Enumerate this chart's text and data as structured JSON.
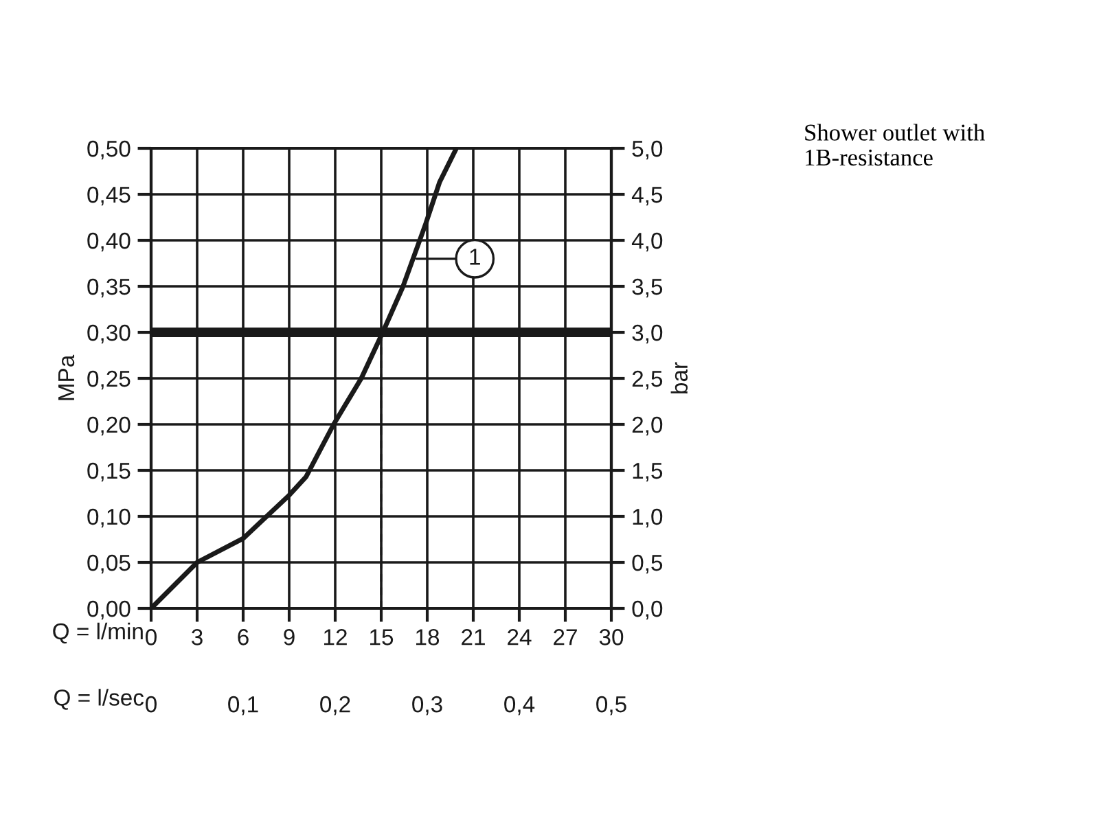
{
  "chart_data": {
    "type": "line",
    "annotations": [
      {
        "text": "1",
        "x": 17.3,
        "y": 0.38
      },
      "Shower outlet with 1B-resistance"
    ],
    "xlabel": "Q = l/min",
    "x2label": "Q = l/sec",
    "ylabel": "MPa",
    "y2label": "bar",
    "series": [
      {
        "color": "#1a1a1a",
        "line_style": "solid",
        "x": [
          0,
          3,
          6,
          9,
          10.1,
          11.9,
          13.7,
          15.1,
          16.4,
          17.9,
          18.8,
          19.9
        ],
        "values": [
          0,
          0.05,
          0.076,
          0.123,
          0.143,
          0.2,
          0.25,
          0.3,
          0.349,
          0.418,
          0.463,
          0.5
        ]
      },
      {
        "color": "#1a1a1a",
        "line_style": "dashed",
        "x": [
          15,
          15
        ],
        "values": [
          0,
          0.3
        ]
      }
    ],
    "ref_lines": [
      {
        "axis": "y",
        "value": 0.3,
        "color": "#1a1a1a"
      }
    ],
    "xlim": [
      0,
      30
    ],
    "xticks": [
      0,
      3,
      6,
      9,
      12,
      15,
      18,
      21,
      24,
      27,
      30
    ],
    "x2lim": [
      0,
      0.5
    ],
    "x2ticks": [
      0,
      {
        "value": 0.1,
        "label": "0,1"
      },
      {
        "value": 0.2,
        "label": "0,2"
      },
      {
        "value": 0.3,
        "label": "0,3"
      },
      {
        "value": 0.4,
        "label": "0,4"
      },
      {
        "value": 0.5,
        "label": "0,5"
      }
    ],
    "ylim": [
      0,
      0.5
    ],
    "yticks": [
      {
        "value": 0,
        "label": "0,00"
      },
      {
        "value": 0.05,
        "label": "0,05"
      },
      {
        "value": 0.1,
        "label": "0,10"
      },
      {
        "value": 0.15,
        "label": "0,15"
      },
      {
        "value": 0.2,
        "label": "0,20"
      },
      {
        "value": 0.25,
        "label": "0,25"
      },
      {
        "value": 0.3,
        "label": "0,30"
      },
      {
        "value": 0.35,
        "label": "0,35"
      },
      {
        "value": 0.4,
        "label": "0,40"
      },
      {
        "value": 0.45,
        "label": "0,45"
      },
      {
        "value": 0.5,
        "label": "0,50"
      }
    ],
    "y2lim": [
      0,
      5
    ],
    "y2ticks": [
      {
        "value": 0,
        "label": "0,0"
      },
      {
        "value": 0.5,
        "label": "0,5"
      },
      {
        "value": 1,
        "label": "1,0"
      },
      {
        "value": 1.5,
        "label": "1,5"
      },
      {
        "value": 2,
        "label": "2,0"
      },
      {
        "value": 2.5,
        "label": "2,5"
      },
      {
        "value": 3,
        "label": "3,0"
      },
      {
        "value": 3.5,
        "label": "3,5"
      },
      {
        "value": 4,
        "label": "4,0"
      },
      {
        "value": 4.5,
        "label": "4,5"
      },
      {
        "value": 5,
        "label": "5,0"
      }
    ],
    "grid": true
  }
}
